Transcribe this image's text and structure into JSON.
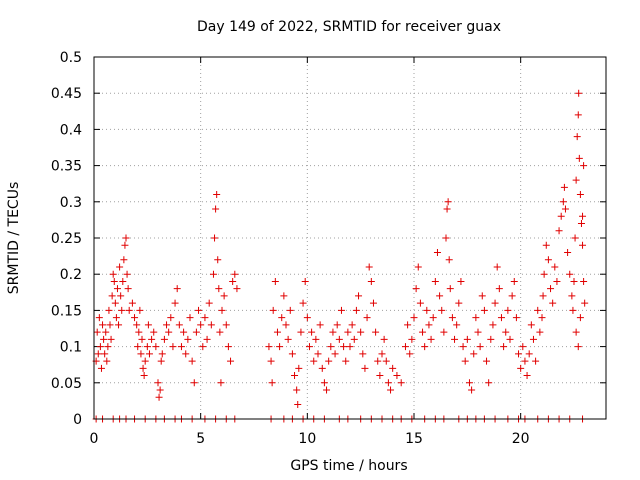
{
  "chart_data": {
    "type": "scatter",
    "title": "Day 149 of 2022, SRMTID for receiver guax",
    "xlabel": "GPS time / hours",
    "ylabel": "SRMTID / TECUs",
    "xlim": [
      0,
      24
    ],
    "ylim": [
      0,
      0.5
    ],
    "xticks": [
      0,
      5,
      10,
      15,
      20
    ],
    "xtick_labels": [
      "0",
      "5",
      "10",
      "15",
      "20"
    ],
    "yticks": [
      0,
      0.05,
      0.1,
      0.15,
      0.2,
      0.25,
      0.3,
      0.35,
      0.4,
      0.45,
      0.5
    ],
    "ytick_labels": [
      "0",
      "0.05",
      "0.1",
      "0.15",
      "0.2",
      "0.25",
      "0.3",
      "0.35",
      "0.4",
      "0.45",
      "0.5"
    ],
    "grid": true,
    "marker": "+",
    "color": "#e00000",
    "series": [
      {
        "name": "SRMTID",
        "points": [
          [
            0.1,
            0.08
          ],
          [
            0.15,
            0.12
          ],
          [
            0.2,
            0.09
          ],
          [
            0.25,
            0.14
          ],
          [
            0.3,
            0.1
          ],
          [
            0.35,
            0.07
          ],
          [
            0.4,
            0.13
          ],
          [
            0.45,
            0.11
          ],
          [
            0.5,
            0.09
          ],
          [
            0.55,
            0.12
          ],
          [
            0.6,
            0.08
          ],
          [
            0.65,
            0.1
          ],
          [
            0.7,
            0.15
          ],
          [
            0.75,
            0.13
          ],
          [
            0.8,
            0.11
          ],
          [
            0.85,
            0.17
          ],
          [
            0.9,
            0.2
          ],
          [
            0.95,
            0.19
          ],
          [
            1.0,
            0.16
          ],
          [
            1.05,
            0.14
          ],
          [
            1.1,
            0.18
          ],
          [
            1.15,
            0.13
          ],
          [
            1.2,
            0.21
          ],
          [
            1.25,
            0.17
          ],
          [
            1.3,
            0.15
          ],
          [
            1.35,
            0.19
          ],
          [
            1.4,
            0.22
          ],
          [
            1.45,
            0.24
          ],
          [
            1.5,
            0.25
          ],
          [
            1.55,
            0.2
          ],
          [
            1.6,
            0.18
          ],
          [
            1.65,
            0.15
          ],
          [
            1.8,
            0.16
          ],
          [
            1.9,
            0.14
          ],
          [
            2.0,
            0.13
          ],
          [
            2.05,
            0.1
          ],
          [
            2.1,
            0.12
          ],
          [
            2.15,
            0.15
          ],
          [
            2.2,
            0.09
          ],
          [
            2.25,
            0.11
          ],
          [
            2.3,
            0.07
          ],
          [
            2.35,
            0.06
          ],
          [
            2.4,
            0.08
          ],
          [
            2.5,
            0.1
          ],
          [
            2.55,
            0.13
          ],
          [
            2.6,
            0.09
          ],
          [
            2.7,
            0.11
          ],
          [
            2.8,
            0.12
          ],
          [
            2.9,
            0.1
          ],
          [
            3.0,
            0.05
          ],
          [
            3.05,
            0.03
          ],
          [
            3.1,
            0.04
          ],
          [
            3.15,
            0.08
          ],
          [
            3.2,
            0.09
          ],
          [
            3.3,
            0.11
          ],
          [
            3.4,
            0.13
          ],
          [
            3.5,
            0.12
          ],
          [
            3.6,
            0.14
          ],
          [
            3.7,
            0.1
          ],
          [
            3.8,
            0.16
          ],
          [
            3.9,
            0.18
          ],
          [
            4.0,
            0.13
          ],
          [
            4.1,
            0.1
          ],
          [
            4.2,
            0.12
          ],
          [
            4.3,
            0.09
          ],
          [
            4.4,
            0.11
          ],
          [
            4.5,
            0.14
          ],
          [
            4.6,
            0.08
          ],
          [
            4.7,
            0.05
          ],
          [
            4.8,
            0.12
          ],
          [
            4.9,
            0.15
          ],
          [
            5.0,
            0.13
          ],
          [
            5.1,
            0.1
          ],
          [
            5.2,
            0.14
          ],
          [
            5.3,
            0.11
          ],
          [
            5.4,
            0.16
          ],
          [
            5.5,
            0.13
          ],
          [
            5.6,
            0.2
          ],
          [
            5.65,
            0.25
          ],
          [
            5.7,
            0.29
          ],
          [
            5.75,
            0.31
          ],
          [
            5.8,
            0.22
          ],
          [
            5.85,
            0.18
          ],
          [
            5.9,
            0.12
          ],
          [
            5.95,
            0.05
          ],
          [
            6.0,
            0.15
          ],
          [
            6.1,
            0.17
          ],
          [
            6.2,
            0.13
          ],
          [
            6.3,
            0.1
          ],
          [
            6.4,
            0.08
          ],
          [
            6.5,
            0.19
          ],
          [
            6.6,
            0.2
          ],
          [
            6.7,
            0.18
          ],
          [
            8.2,
            0.1
          ],
          [
            8.3,
            0.08
          ],
          [
            8.35,
            0.05
          ],
          [
            8.4,
            0.15
          ],
          [
            8.5,
            0.19
          ],
          [
            8.6,
            0.12
          ],
          [
            8.7,
            0.1
          ],
          [
            8.8,
            0.14
          ],
          [
            8.9,
            0.17
          ],
          [
            9.0,
            0.13
          ],
          [
            9.1,
            0.11
          ],
          [
            9.2,
            0.15
          ],
          [
            9.3,
            0.09
          ],
          [
            9.4,
            0.06
          ],
          [
            9.5,
            0.04
          ],
          [
            9.55,
            0.02
          ],
          [
            9.6,
            0.07
          ],
          [
            9.7,
            0.12
          ],
          [
            9.8,
            0.16
          ],
          [
            9.9,
            0.19
          ],
          [
            10.0,
            0.14
          ],
          [
            10.1,
            0.1
          ],
          [
            10.2,
            0.12
          ],
          [
            10.3,
            0.08
          ],
          [
            10.4,
            0.11
          ],
          [
            10.5,
            0.09
          ],
          [
            10.6,
            0.13
          ],
          [
            10.7,
            0.07
          ],
          [
            10.8,
            0.05
          ],
          [
            10.9,
            0.04
          ],
          [
            11.0,
            0.08
          ],
          [
            11.1,
            0.1
          ],
          [
            11.2,
            0.12
          ],
          [
            11.3,
            0.09
          ],
          [
            11.4,
            0.13
          ],
          [
            11.5,
            0.11
          ],
          [
            11.6,
            0.15
          ],
          [
            11.7,
            0.1
          ],
          [
            11.8,
            0.08
          ],
          [
            11.9,
            0.12
          ],
          [
            12.0,
            0.1
          ],
          [
            12.1,
            0.13
          ],
          [
            12.2,
            0.11
          ],
          [
            12.3,
            0.15
          ],
          [
            12.4,
            0.17
          ],
          [
            12.5,
            0.12
          ],
          [
            12.6,
            0.09
          ],
          [
            12.7,
            0.07
          ],
          [
            12.8,
            0.14
          ],
          [
            12.9,
            0.21
          ],
          [
            13.0,
            0.19
          ],
          [
            13.1,
            0.16
          ],
          [
            13.2,
            0.12
          ],
          [
            13.3,
            0.08
          ],
          [
            13.4,
            0.06
          ],
          [
            13.5,
            0.09
          ],
          [
            13.6,
            0.11
          ],
          [
            13.7,
            0.08
          ],
          [
            13.8,
            0.05
          ],
          [
            13.9,
            0.04
          ],
          [
            14.0,
            0.07
          ],
          [
            14.2,
            0.06
          ],
          [
            14.4,
            0.05
          ],
          [
            14.6,
            0.1
          ],
          [
            14.7,
            0.13
          ],
          [
            14.8,
            0.09
          ],
          [
            14.9,
            0.11
          ],
          [
            15.0,
            0.14
          ],
          [
            15.1,
            0.18
          ],
          [
            15.2,
            0.21
          ],
          [
            15.3,
            0.16
          ],
          [
            15.4,
            0.12
          ],
          [
            15.5,
            0.1
          ],
          [
            15.6,
            0.15
          ],
          [
            15.7,
            0.13
          ],
          [
            15.8,
            0.11
          ],
          [
            15.9,
            0.14
          ],
          [
            16.0,
            0.19
          ],
          [
            16.1,
            0.23
          ],
          [
            16.2,
            0.17
          ],
          [
            16.3,
            0.15
          ],
          [
            16.4,
            0.12
          ],
          [
            16.5,
            0.25
          ],
          [
            16.55,
            0.29
          ],
          [
            16.6,
            0.3
          ],
          [
            16.65,
            0.22
          ],
          [
            16.7,
            0.18
          ],
          [
            16.8,
            0.14
          ],
          [
            16.9,
            0.11
          ],
          [
            17.0,
            0.13
          ],
          [
            17.1,
            0.16
          ],
          [
            17.2,
            0.19
          ],
          [
            17.3,
            0.1
          ],
          [
            17.4,
            0.08
          ],
          [
            17.5,
            0.11
          ],
          [
            17.6,
            0.05
          ],
          [
            17.7,
            0.04
          ],
          [
            17.8,
            0.09
          ],
          [
            17.9,
            0.14
          ],
          [
            18.0,
            0.12
          ],
          [
            18.1,
            0.1
          ],
          [
            18.2,
            0.17
          ],
          [
            18.3,
            0.15
          ],
          [
            18.4,
            0.08
          ],
          [
            18.5,
            0.05
          ],
          [
            18.6,
            0.11
          ],
          [
            18.7,
            0.13
          ],
          [
            18.8,
            0.16
          ],
          [
            18.9,
            0.21
          ],
          [
            19.0,
            0.18
          ],
          [
            19.1,
            0.14
          ],
          [
            19.2,
            0.1
          ],
          [
            19.3,
            0.12
          ],
          [
            19.4,
            0.15
          ],
          [
            19.5,
            0.11
          ],
          [
            19.6,
            0.17
          ],
          [
            19.7,
            0.19
          ],
          [
            19.8,
            0.14
          ],
          [
            19.9,
            0.09
          ],
          [
            20.0,
            0.07
          ],
          [
            20.1,
            0.1
          ],
          [
            20.2,
            0.08
          ],
          [
            20.3,
            0.06
          ],
          [
            20.4,
            0.09
          ],
          [
            20.5,
            0.13
          ],
          [
            20.6,
            0.11
          ],
          [
            20.7,
            0.08
          ],
          [
            20.8,
            0.15
          ],
          [
            20.9,
            0.12
          ],
          [
            21.0,
            0.14
          ],
          [
            21.05,
            0.17
          ],
          [
            21.1,
            0.2
          ],
          [
            21.2,
            0.24
          ],
          [
            21.3,
            0.22
          ],
          [
            21.4,
            0.18
          ],
          [
            21.5,
            0.16
          ],
          [
            21.6,
            0.21
          ],
          [
            21.7,
            0.19
          ],
          [
            21.8,
            0.26
          ],
          [
            21.9,
            0.28
          ],
          [
            22.0,
            0.3
          ],
          [
            22.05,
            0.32
          ],
          [
            22.1,
            0.29
          ],
          [
            22.2,
            0.23
          ],
          [
            22.3,
            0.2
          ],
          [
            22.4,
            0.17
          ],
          [
            22.45,
            0.15
          ],
          [
            22.5,
            0.19
          ],
          [
            22.55,
            0.25
          ],
          [
            22.6,
            0.33
          ],
          [
            22.65,
            0.39
          ],
          [
            22.7,
            0.42
          ],
          [
            22.72,
            0.45
          ],
          [
            22.75,
            0.36
          ],
          [
            22.8,
            0.31
          ],
          [
            22.85,
            0.27
          ],
          [
            22.9,
            0.24
          ],
          [
            22.95,
            0.19
          ],
          [
            23.0,
            0.16
          ],
          [
            22.6,
            0.12
          ],
          [
            22.7,
            0.1
          ],
          [
            22.8,
            0.14
          ],
          [
            22.9,
            0.28
          ],
          [
            22.95,
            0.35
          ]
        ],
        "zeros": [
          0.1,
          0.4,
          0.9,
          1.2,
          1.5,
          1.9,
          2.4,
          2.9,
          3.3,
          3.8,
          4.1,
          4.6,
          5.2,
          5.7,
          6.2,
          6.6,
          8.3,
          8.9,
          9.3,
          9.8,
          10.3,
          10.8,
          11.5,
          11.9,
          12.5,
          13.0,
          13.5,
          14.0,
          14.4,
          14.9,
          15.5,
          16.0,
          16.4,
          17.1,
          17.5,
          17.9,
          18.3,
          18.8,
          19.4,
          19.9,
          20.2,
          20.8,
          21.3,
          21.8,
          22.3,
          22.9
        ]
      }
    ]
  }
}
